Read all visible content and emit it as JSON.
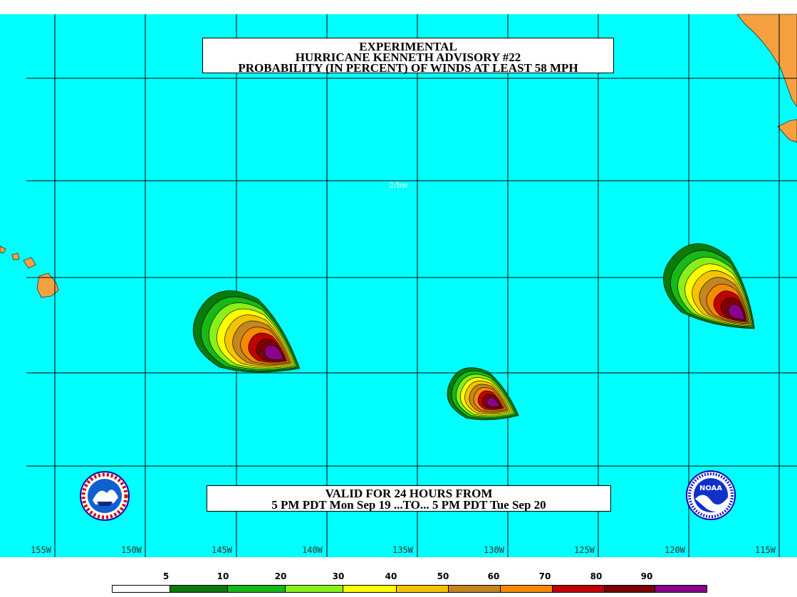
{
  "title": {
    "line1": "EXPERIMENTAL",
    "line2": "HURRICANE KENNETH ADVISORY #22",
    "line3": "PROBABILITY (IN PERCENT) OF WINDS AT LEAST 58 MPH"
  },
  "valid": {
    "line1": "VALID FOR 24 HOURS FROM",
    "line2": "5 PM PDT Mon Sep 19 ...TO... 5 PM PDT Tue Sep 20"
  },
  "watermark": "2/hw",
  "longitudes": [
    "155W",
    "150W",
    "145W",
    "140W",
    "135W",
    "130W",
    "125W",
    "120W",
    "115W"
  ],
  "legend": {
    "labels": [
      "5",
      "10",
      "20",
      "30",
      "40",
      "50",
      "60",
      "70",
      "80",
      "90"
    ],
    "colors": [
      "#ffffff",
      "#0a7a0a",
      "#17b817",
      "#88f01a",
      "#ffff00",
      "#f5c400",
      "#c4861e",
      "#f58a00",
      "#c00000",
      "#7a0000",
      "#8a008a"
    ]
  },
  "colors": {
    "ocean": "#00ffff",
    "land": "#f5a040",
    "grid": "#000000"
  },
  "logos": {
    "left": "nws-logo",
    "right": "noaa-logo"
  }
}
